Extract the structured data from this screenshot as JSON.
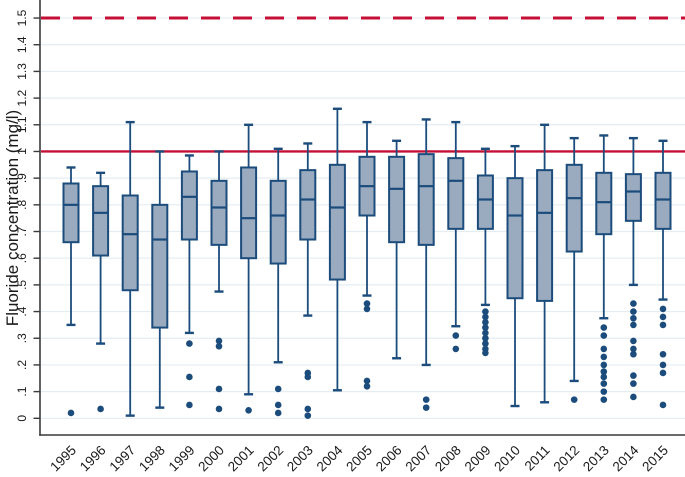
{
  "chart_data": {
    "type": "boxplot",
    "title": "",
    "xlabel": "",
    "ylabel": "Fluoride concentration (mg/l)",
    "ylim": [
      0,
      1.55
    ],
    "grid": true,
    "legend": "none",
    "y_ticks": [
      "0",
      ".1",
      ".2",
      ".3",
      ".4",
      ".5",
      ".6",
      ".7",
      ".8",
      ".9",
      "1",
      "1.1",
      "1.2",
      "1.3",
      "1.4",
      "1.5"
    ],
    "categories": [
      "1995",
      "1996",
      "1997",
      "1998",
      "1999",
      "2000",
      "2001",
      "2002",
      "2003",
      "2004",
      "2005",
      "2006",
      "2007",
      "2008",
      "2009",
      "2010",
      "2011",
      "2012",
      "2013",
      "2014",
      "2015"
    ],
    "reference_lines": [
      {
        "value": 1.0,
        "style": "solid",
        "color": "#c41036"
      },
      {
        "value": 1.5,
        "style": "dashed",
        "color": "#c41036"
      }
    ],
    "boxes": [
      {
        "year": "1995",
        "whisker_low": 0.35,
        "q1": 0.66,
        "median": 0.8,
        "q3": 0.88,
        "whisker_high": 0.94,
        "outliers": [
          0.02
        ]
      },
      {
        "year": "1996",
        "whisker_low": 0.28,
        "q1": 0.61,
        "median": 0.77,
        "q3": 0.87,
        "whisker_high": 0.92,
        "outliers": [
          0.035
        ]
      },
      {
        "year": "1997",
        "whisker_low": 0.01,
        "q1": 0.48,
        "median": 0.69,
        "q3": 0.835,
        "whisker_high": 1.11,
        "outliers": []
      },
      {
        "year": "1998",
        "whisker_low": 0.04,
        "q1": 0.34,
        "median": 0.67,
        "q3": 0.8,
        "whisker_high": 1.0,
        "outliers": []
      },
      {
        "year": "1999",
        "whisker_low": 0.32,
        "q1": 0.67,
        "median": 0.83,
        "q3": 0.925,
        "whisker_high": 0.985,
        "outliers": [
          0.28,
          0.155,
          0.05
        ]
      },
      {
        "year": "2000",
        "whisker_low": 0.475,
        "q1": 0.65,
        "median": 0.79,
        "q3": 0.89,
        "whisker_high": 1.0,
        "outliers": [
          0.29,
          0.27,
          0.11,
          0.035
        ]
      },
      {
        "year": "2001",
        "whisker_low": 0.09,
        "q1": 0.6,
        "median": 0.75,
        "q3": 0.94,
        "whisker_high": 1.1,
        "outliers": [
          0.03
        ]
      },
      {
        "year": "2002",
        "whisker_low": 0.21,
        "q1": 0.58,
        "median": 0.76,
        "q3": 0.89,
        "whisker_high": 1.01,
        "outliers": [
          0.11,
          0.05,
          0.02
        ]
      },
      {
        "year": "2003",
        "whisker_low": 0.385,
        "q1": 0.67,
        "median": 0.82,
        "q3": 0.93,
        "whisker_high": 1.03,
        "outliers": [
          0.17,
          0.155,
          0.035,
          0.01
        ]
      },
      {
        "year": "2004",
        "whisker_low": 0.105,
        "q1": 0.52,
        "median": 0.79,
        "q3": 0.95,
        "whisker_high": 1.16,
        "outliers": []
      },
      {
        "year": "2005",
        "whisker_low": 0.46,
        "q1": 0.76,
        "median": 0.87,
        "q3": 0.98,
        "whisker_high": 1.11,
        "outliers": [
          0.43,
          0.41,
          0.14,
          0.12
        ]
      },
      {
        "year": "2006",
        "whisker_low": 0.225,
        "q1": 0.66,
        "median": 0.86,
        "q3": 0.98,
        "whisker_high": 1.04,
        "outliers": []
      },
      {
        "year": "2007",
        "whisker_low": 0.2,
        "q1": 0.65,
        "median": 0.87,
        "q3": 0.99,
        "whisker_high": 1.12,
        "outliers": [
          0.07,
          0.04
        ]
      },
      {
        "year": "2008",
        "whisker_low": 0.345,
        "q1": 0.71,
        "median": 0.89,
        "q3": 0.975,
        "whisker_high": 1.11,
        "outliers": [
          0.31,
          0.26
        ]
      },
      {
        "year": "2009",
        "whisker_low": 0.425,
        "q1": 0.71,
        "median": 0.82,
        "q3": 0.91,
        "whisker_high": 1.01,
        "outliers": [
          0.4,
          0.38,
          0.36,
          0.34,
          0.32,
          0.3,
          0.28,
          0.26,
          0.245
        ]
      },
      {
        "year": "2010",
        "whisker_low": 0.046,
        "q1": 0.45,
        "median": 0.76,
        "q3": 0.9,
        "whisker_high": 1.02,
        "outliers": []
      },
      {
        "year": "2011",
        "whisker_low": 0.06,
        "q1": 0.44,
        "median": 0.77,
        "q3": 0.93,
        "whisker_high": 1.1,
        "outliers": []
      },
      {
        "year": "2012",
        "whisker_low": 0.14,
        "q1": 0.625,
        "median": 0.825,
        "q3": 0.95,
        "whisker_high": 1.05,
        "outliers": [
          0.07
        ]
      },
      {
        "year": "2013",
        "whisker_low": 0.375,
        "q1": 0.69,
        "median": 0.81,
        "q3": 0.92,
        "whisker_high": 1.06,
        "outliers": [
          0.34,
          0.31,
          0.26,
          0.23,
          0.2,
          0.175,
          0.155,
          0.13,
          0.1,
          0.07
        ]
      },
      {
        "year": "2014",
        "whisker_low": 0.5,
        "q1": 0.74,
        "median": 0.85,
        "q3": 0.915,
        "whisker_high": 1.05,
        "outliers": [
          0.43,
          0.4,
          0.375,
          0.35,
          0.29,
          0.26,
          0.24,
          0.16,
          0.13,
          0.08
        ]
      },
      {
        "year": "2015",
        "whisker_low": 0.445,
        "q1": 0.71,
        "median": 0.82,
        "q3": 0.92,
        "whisker_high": 1.04,
        "outliers": [
          0.41,
          0.38,
          0.35,
          0.24,
          0.2,
          0.17,
          0.05
        ]
      }
    ],
    "colors": {
      "box_fill": "#9babbf",
      "box_stroke": "#1b4c7c",
      "outlier": "#1b4c7c",
      "reference": "#c41036",
      "grid": "#e4edf2",
      "axis": "#3a3a3a",
      "text": "#1a1a1a"
    }
  }
}
